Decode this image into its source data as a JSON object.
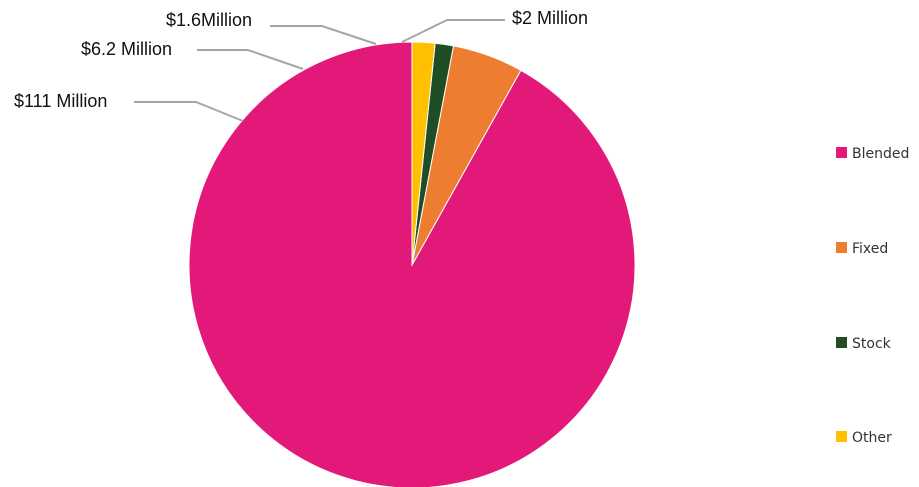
{
  "chart_data": {
    "type": "pie",
    "title": "",
    "categories": [
      "Blended",
      "Fixed",
      "Stock",
      "Other"
    ],
    "values": [
      111,
      6.2,
      1.6,
      2
    ],
    "unit": "Million USD",
    "data_labels": [
      "$111 Million",
      "$6.2 Million",
      "$1.6Million",
      "$2 Million"
    ],
    "colors": [
      "#E3197A",
      "#ED7D31",
      "#1F4E26",
      "#FFC000"
    ],
    "start_angle": "12 o'clock",
    "direction": "counterclockwise",
    "legend_position": "right"
  }
}
